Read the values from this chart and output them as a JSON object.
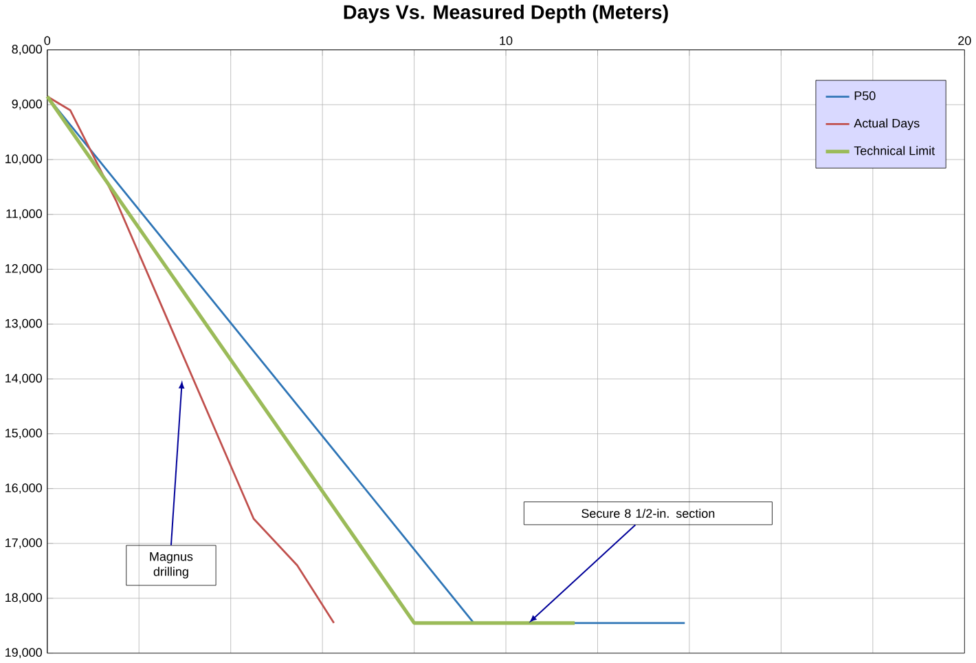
{
  "chart_data": {
    "type": "line",
    "title": "Days Vs. Measured Depth (Meters)",
    "xlim": [
      0,
      20
    ],
    "xticks": [
      {
        "value": 0,
        "label": "0"
      },
      {
        "value": 2,
        "label": null
      },
      {
        "value": 4,
        "label": null
      },
      {
        "value": 6,
        "label": null
      },
      {
        "value": 8,
        "label": null
      },
      {
        "value": 10,
        "label": "10"
      },
      {
        "value": 12,
        "label": null
      },
      {
        "value": 14,
        "label": null
      },
      {
        "value": 16,
        "label": null
      },
      {
        "value": 18,
        "label": null
      },
      {
        "value": 20,
        "label": "20"
      }
    ],
    "ylim": [
      19000,
      8000
    ],
    "yticks": [
      {
        "value": 8000,
        "label": "8,000"
      },
      {
        "value": 9000,
        "label": "9,000"
      },
      {
        "value": 10000,
        "label": "10,000"
      },
      {
        "value": 11000,
        "label": "11,000"
      },
      {
        "value": 12000,
        "label": "12,000"
      },
      {
        "value": 13000,
        "label": "13,000"
      },
      {
        "value": 14000,
        "label": "14,000"
      },
      {
        "value": 15000,
        "label": "15,000"
      },
      {
        "value": 16000,
        "label": "16,000"
      },
      {
        "value": 17000,
        "label": "17,000"
      },
      {
        "value": 18000,
        "label": "18,000"
      },
      {
        "value": 19000,
        "label": "19,000"
      }
    ],
    "grid": true,
    "legend": "top right",
    "marker": "none",
    "line_style": "solid",
    "series": [
      {
        "name": "P50",
        "color": "#2e75b6",
        "x": [
          0,
          9.3,
          13.9
        ],
        "values": [
          8850,
          18450,
          18450
        ]
      },
      {
        "name": "Actual Days",
        "color": "#c0504d",
        "x": [
          0,
          0.5,
          1.5,
          4.5,
          5.45,
          6.25
        ],
        "values": [
          8850,
          9100,
          10750,
          16550,
          17400,
          18450
        ]
      },
      {
        "name": "Technical Limit",
        "color": "#9bbb59",
        "x": [
          0,
          8,
          11.5
        ],
        "values": [
          8850,
          18450,
          18450
        ]
      }
    ],
    "annotations": [
      "Magnus drilling",
      {
        "text": "Secure 8 1/2-in. section",
        "x": 10.5,
        "y": 18450
      }
    ]
  }
}
